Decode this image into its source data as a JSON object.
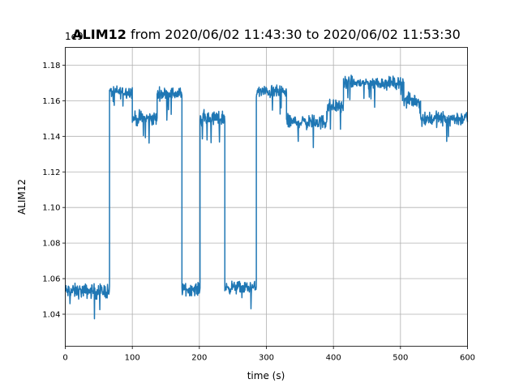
{
  "chart_data": {
    "type": "line",
    "title_bold": "ALIM12",
    "title_rest": " from 2020/06/02 11:43:30 to 2020/06/02 11:53:30",
    "offset_label": "1e9",
    "xlabel": "time (s)",
    "ylabel": "ALIM12",
    "xlim": [
      0,
      600
    ],
    "ylim": [
      1.022,
      1.19
    ],
    "x_ticks": [
      0,
      100,
      200,
      300,
      400,
      500,
      600
    ],
    "x_tick_labels": [
      "0",
      "100",
      "200",
      "300",
      "400",
      "500",
      "600"
    ],
    "y_ticks": [
      1.04,
      1.06,
      1.08,
      1.1,
      1.12,
      1.14,
      1.16,
      1.18
    ],
    "y_tick_labels": [
      "1.04",
      "1.06",
      "1.08",
      "1.10",
      "1.12",
      "1.14",
      "1.16",
      "1.18"
    ],
    "grid": true,
    "series": [
      {
        "color": "#1f77b4",
        "unit_scale": "1e9",
        "segments": [
          {
            "x_start": 0,
            "x_end": 66,
            "mean": 1.053,
            "noise": 0.006
          },
          {
            "x_start": 66,
            "x_end": 100,
            "mean": 1.165,
            "noise": 0.005
          },
          {
            "x_start": 100,
            "x_end": 137,
            "mean": 1.15,
            "noise": 0.006
          },
          {
            "x_start": 137,
            "x_end": 174,
            "mean": 1.164,
            "noise": 0.005
          },
          {
            "x_start": 174,
            "x_end": 201,
            "mean": 1.054,
            "noise": 0.005
          },
          {
            "x_start": 201,
            "x_end": 238,
            "mean": 1.15,
            "noise": 0.006
          },
          {
            "x_start": 238,
            "x_end": 285,
            "mean": 1.055,
            "noise": 0.005
          },
          {
            "x_start": 285,
            "x_end": 330,
            "mean": 1.165,
            "noise": 0.005
          },
          {
            "x_start": 330,
            "x_end": 390,
            "mean": 1.148,
            "noise": 0.006
          },
          {
            "x_start": 390,
            "x_end": 415,
            "mean": 1.157,
            "noise": 0.006
          },
          {
            "x_start": 415,
            "x_end": 505,
            "mean": 1.17,
            "noise": 0.005
          },
          {
            "x_start": 505,
            "x_end": 530,
            "mean": 1.16,
            "noise": 0.006
          },
          {
            "x_start": 530,
            "x_end": 600,
            "mean": 1.15,
            "noise": 0.006
          }
        ]
      }
    ]
  }
}
